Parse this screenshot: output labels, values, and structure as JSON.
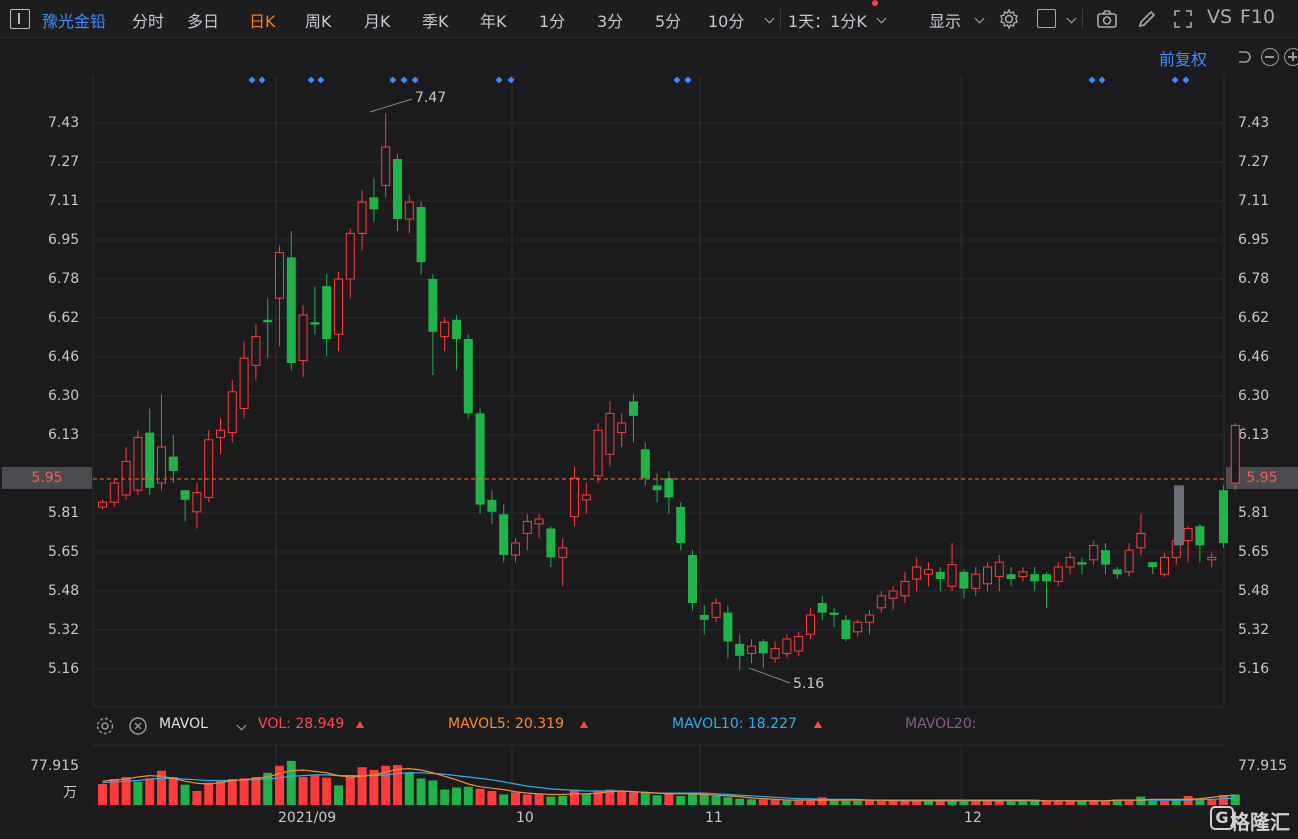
{
  "toolbar": {
    "stock_name": "豫光金铅",
    "tabs": [
      "分时",
      "多日",
      "日K",
      "周K",
      "月K",
      "季K",
      "年K",
      "1分",
      "3分",
      "5分",
      "10分"
    ],
    "active_tab": "日K",
    "multi_period": "1天：1分K",
    "display": "显示",
    "vs": "VS",
    "f10": "F10"
  },
  "chart_header": {
    "adjust": "前复权"
  },
  "price_axis": {
    "ticks": [
      "7.43",
      "7.27",
      "7.11",
      "6.95",
      "6.78",
      "6.62",
      "6.46",
      "6.30",
      "6.13",
      "5.95",
      "5.81",
      "5.65",
      "5.48",
      "5.32",
      "5.16"
    ],
    "current": "5.95",
    "high_label": "7.47",
    "low_label": "5.16"
  },
  "volume": {
    "indicator": "MAVOL",
    "vol": "VOL: 28.949",
    "mavol5": "MAVOL5: 20.319",
    "mavol10": "MAVOL10: 18.227",
    "mavol20": "MAVOL20:",
    "axis_value": "77.915",
    "axis_unit": "万"
  },
  "x_axis": {
    "labels": [
      "2021/09",
      "10",
      "11",
      "12"
    ]
  },
  "watermark": "格隆汇",
  "colors": {
    "up": "#ff3b3b",
    "down": "#1fb34a",
    "accent": "#ff7a1a",
    "blue": "#3c8cff"
  },
  "chart_data": {
    "type": "candlestick",
    "candles": [
      [
        5.83,
        5.85,
        5.82,
        5.86
      ],
      [
        5.85,
        5.93,
        5.83,
        5.95
      ],
      [
        5.88,
        6.02,
        5.86,
        6.08
      ],
      [
        5.9,
        6.12,
        5.88,
        6.15
      ],
      [
        6.14,
        5.91,
        5.88,
        6.24
      ],
      [
        5.93,
        6.08,
        5.9,
        6.3
      ],
      [
        6.04,
        5.98,
        5.93,
        6.13
      ],
      [
        5.9,
        5.86,
        5.77,
        5.9
      ],
      [
        5.81,
        5.89,
        5.74,
        5.93
      ],
      [
        5.87,
        6.11,
        5.85,
        6.15
      ],
      [
        6.12,
        6.15,
        6.05,
        6.2
      ],
      [
        6.14,
        6.31,
        6.1,
        6.36
      ],
      [
        6.24,
        6.45,
        6.2,
        6.52
      ],
      [
        6.42,
        6.54,
        6.36,
        6.59
      ],
      [
        6.61,
        6.6,
        6.45,
        6.7
      ],
      [
        6.7,
        6.89,
        6.5,
        6.92
      ],
      [
        6.87,
        6.43,
        6.4,
        6.98
      ],
      [
        6.44,
        6.63,
        6.37,
        6.67
      ],
      [
        6.6,
        6.59,
        6.55,
        6.75
      ],
      [
        6.75,
        6.53,
        6.46,
        6.8
      ],
      [
        6.55,
        6.78,
        6.48,
        6.81
      ],
      [
        6.78,
        6.97,
        6.7,
        6.99
      ],
      [
        6.97,
        7.1,
        6.9,
        7.15
      ],
      [
        7.12,
        7.07,
        7.02,
        7.2
      ],
      [
        7.17,
        7.33,
        7.12,
        7.47
      ],
      [
        7.28,
        7.03,
        6.98,
        7.3
      ],
      [
        7.03,
        7.1,
        6.97,
        7.13
      ],
      [
        7.08,
        6.85,
        6.8,
        7.1
      ],
      [
        6.78,
        6.56,
        6.38,
        6.8
      ],
      [
        6.54,
        6.6,
        6.48,
        6.62
      ],
      [
        6.61,
        6.53,
        6.4,
        6.63
      ],
      [
        6.53,
        6.22,
        6.2,
        6.55
      ],
      [
        6.22,
        5.84,
        5.8,
        6.24
      ],
      [
        5.86,
        5.81,
        5.76,
        5.9
      ],
      [
        5.8,
        5.63,
        5.6,
        5.84
      ],
      [
        5.63,
        5.68,
        5.6,
        5.7
      ],
      [
        5.72,
        5.77,
        5.65,
        5.8
      ],
      [
        5.76,
        5.78,
        5.7,
        5.8
      ],
      [
        5.74,
        5.62,
        5.58,
        5.75
      ],
      [
        5.62,
        5.66,
        5.5,
        5.7
      ],
      [
        5.79,
        5.95,
        5.75,
        6.0
      ],
      [
        5.86,
        5.88,
        5.8,
        5.93
      ],
      [
        5.96,
        6.15,
        5.93,
        6.18
      ],
      [
        6.05,
        6.22,
        6.0,
        6.27
      ],
      [
        6.14,
        6.18,
        6.08,
        6.22
      ],
      [
        6.27,
        6.21,
        6.1,
        6.3
      ],
      [
        6.07,
        5.95,
        5.92,
        6.1
      ],
      [
        5.92,
        5.9,
        5.85,
        5.97
      ],
      [
        5.95,
        5.87,
        5.8,
        5.98
      ],
      [
        5.83,
        5.68,
        5.65,
        5.85
      ],
      [
        5.63,
        5.43,
        5.4,
        5.65
      ],
      [
        5.38,
        5.36,
        5.3,
        5.42
      ],
      [
        5.37,
        5.43,
        5.35,
        5.45
      ],
      [
        5.39,
        5.27,
        5.2,
        5.42
      ],
      [
        5.26,
        5.21,
        5.15,
        5.3
      ],
      [
        5.22,
        5.25,
        5.18,
        5.28
      ],
      [
        5.27,
        5.22,
        5.16,
        5.28
      ],
      [
        5.2,
        5.24,
        5.18,
        5.27
      ],
      [
        5.22,
        5.28,
        5.2,
        5.3
      ],
      [
        5.23,
        5.29,
        5.21,
        5.31
      ],
      [
        5.3,
        5.38,
        5.28,
        5.41
      ],
      [
        5.43,
        5.39,
        5.36,
        5.46
      ],
      [
        5.39,
        5.38,
        5.33,
        5.41
      ],
      [
        5.36,
        5.28,
        5.27,
        5.38
      ],
      [
        5.31,
        5.35,
        5.29,
        5.36
      ],
      [
        5.35,
        5.38,
        5.3,
        5.4
      ],
      [
        5.41,
        5.46,
        5.39,
        5.48
      ],
      [
        5.45,
        5.48,
        5.4,
        5.5
      ],
      [
        5.46,
        5.52,
        5.43,
        5.56
      ],
      [
        5.53,
        5.58,
        5.48,
        5.62
      ],
      [
        5.55,
        5.57,
        5.5,
        5.6
      ],
      [
        5.56,
        5.53,
        5.48,
        5.58
      ],
      [
        5.5,
        5.59,
        5.48,
        5.68
      ],
      [
        5.56,
        5.49,
        5.45,
        5.57
      ],
      [
        5.49,
        5.55,
        5.46,
        5.58
      ],
      [
        5.51,
        5.58,
        5.48,
        5.6
      ],
      [
        5.54,
        5.6,
        5.48,
        5.63
      ],
      [
        5.55,
        5.53,
        5.5,
        5.58
      ],
      [
        5.54,
        5.56,
        5.52,
        5.58
      ],
      [
        5.55,
        5.52,
        5.48,
        5.58
      ],
      [
        5.55,
        5.52,
        5.41,
        5.56
      ],
      [
        5.52,
        5.58,
        5.5,
        5.6
      ],
      [
        5.58,
        5.62,
        5.55,
        5.64
      ],
      [
        5.6,
        5.59,
        5.55,
        5.62
      ],
      [
        5.61,
        5.67,
        5.59,
        5.69
      ],
      [
        5.65,
        5.59,
        5.55,
        5.68
      ],
      [
        5.57,
        5.55,
        5.53,
        5.58
      ],
      [
        5.56,
        5.65,
        5.54,
        5.68
      ],
      [
        5.66,
        5.72,
        5.63,
        5.8
      ],
      [
        5.6,
        5.58,
        5.55,
        5.6
      ],
      [
        5.55,
        5.62,
        5.54,
        5.64
      ],
      [
        5.62,
        5.69,
        5.59,
        5.71
      ],
      [
        5.69,
        5.74,
        5.6,
        5.75
      ],
      [
        5.75,
        5.67,
        5.6,
        5.76
      ],
      [
        5.61,
        5.62,
        5.58,
        5.64
      ],
      [
        5.9,
        5.68,
        5.66,
        5.92
      ],
      [
        5.93,
        6.17,
        5.9,
        6.18
      ]
    ],
    "volumes": [
      [
        30,
        1
      ],
      [
        37,
        1
      ],
      [
        40,
        1
      ],
      [
        33,
        0
      ],
      [
        38,
        1
      ],
      [
        49,
        1
      ],
      [
        40,
        1
      ],
      [
        29,
        0
      ],
      [
        20,
        1
      ],
      [
        32,
        1
      ],
      [
        34,
        1
      ],
      [
        37,
        1
      ],
      [
        38,
        1
      ],
      [
        40,
        1
      ],
      [
        46,
        0
      ],
      [
        56,
        1
      ],
      [
        63,
        0
      ],
      [
        40,
        1
      ],
      [
        42,
        1
      ],
      [
        39,
        1
      ],
      [
        28,
        0
      ],
      [
        40,
        1
      ],
      [
        54,
        1
      ],
      [
        50,
        1
      ],
      [
        56,
        1
      ],
      [
        57,
        1
      ],
      [
        47,
        0
      ],
      [
        38,
        0
      ],
      [
        35,
        0
      ],
      [
        22,
        0
      ],
      [
        25,
        0
      ],
      [
        26,
        0
      ],
      [
        23,
        1
      ],
      [
        20,
        1
      ],
      [
        15,
        0
      ],
      [
        18,
        1
      ],
      [
        15,
        1
      ],
      [
        16,
        1
      ],
      [
        12,
        0
      ],
      [
        13,
        0
      ],
      [
        22,
        1
      ],
      [
        16,
        0
      ],
      [
        20,
        1
      ],
      [
        22,
        1
      ],
      [
        19,
        1
      ],
      [
        18,
        1
      ],
      [
        18,
        0
      ],
      [
        14,
        0
      ],
      [
        16,
        1
      ],
      [
        13,
        0
      ],
      [
        17,
        0
      ],
      [
        15,
        0
      ],
      [
        13,
        0
      ],
      [
        11,
        0
      ],
      [
        9,
        0
      ],
      [
        8,
        0
      ],
      [
        8,
        1
      ],
      [
        7,
        1
      ],
      [
        6,
        0
      ],
      [
        6,
        1
      ],
      [
        6,
        1
      ],
      [
        11,
        1
      ],
      [
        8,
        0
      ],
      [
        6,
        0
      ],
      [
        6,
        0
      ],
      [
        6,
        1
      ],
      [
        6,
        1
      ],
      [
        6,
        1
      ],
      [
        6,
        1
      ],
      [
        7,
        1
      ],
      [
        6,
        0
      ],
      [
        8,
        1
      ],
      [
        8,
        0
      ],
      [
        5,
        0
      ],
      [
        5,
        1
      ],
      [
        6,
        1
      ],
      [
        7,
        1
      ],
      [
        5,
        0
      ],
      [
        5,
        0
      ],
      [
        6,
        0
      ],
      [
        6,
        1
      ],
      [
        6,
        1
      ],
      [
        7,
        1
      ],
      [
        6,
        0
      ],
      [
        7,
        1
      ],
      [
        6,
        1
      ],
      [
        6,
        0
      ],
      [
        8,
        1
      ],
      [
        12,
        0
      ],
      [
        6,
        0
      ],
      [
        6,
        1
      ],
      [
        8,
        0
      ],
      [
        13,
        1
      ],
      [
        9,
        0
      ],
      [
        7,
        1
      ],
      [
        14,
        1
      ],
      [
        15,
        0
      ]
    ],
    "mavol5": [
      34,
      36,
      37,
      40,
      42,
      41,
      38,
      34,
      31,
      30,
      32,
      35,
      36,
      38,
      40,
      45,
      49,
      50,
      48,
      46,
      42,
      40,
      41,
      43,
      47,
      51,
      52,
      50,
      46,
      41,
      36,
      30,
      26,
      24,
      22,
      19,
      17,
      16,
      15,
      15,
      16,
      16,
      17,
      19,
      20,
      19,
      18,
      17,
      16,
      16,
      16,
      15,
      14,
      13,
      12,
      10,
      9,
      8,
      7,
      7,
      7,
      7,
      7,
      7,
      7,
      7,
      7,
      6,
      6,
      6,
      6,
      6,
      6,
      6,
      6,
      6,
      6,
      6,
      6,
      6,
      6,
      6,
      6,
      6,
      6,
      6,
      7,
      7,
      7,
      8,
      8,
      8,
      8,
      9,
      11,
      13,
      14
    ],
    "mavol10": [
      32,
      33,
      34,
      35,
      37,
      38,
      38,
      37,
      36,
      35,
      35,
      35,
      36,
      36,
      37,
      39,
      41,
      42,
      43,
      43,
      42,
      42,
      42,
      42,
      43,
      45,
      46,
      46,
      45,
      44,
      42,
      40,
      38,
      36,
      33,
      30,
      27,
      25,
      23,
      22,
      21,
      20,
      20,
      20,
      20,
      19,
      18,
      17,
      17,
      17,
      17,
      17,
      16,
      15,
      14,
      13,
      12,
      11,
      10,
      9,
      9,
      8,
      8,
      8,
      8,
      7,
      7,
      7,
      7,
      7,
      7,
      7,
      7,
      7,
      7,
      7,
      7,
      7,
      7,
      7,
      6,
      6,
      6,
      6,
      6,
      6,
      7,
      7,
      7,
      7,
      7,
      7,
      7,
      8,
      8,
      9,
      10
    ]
  }
}
